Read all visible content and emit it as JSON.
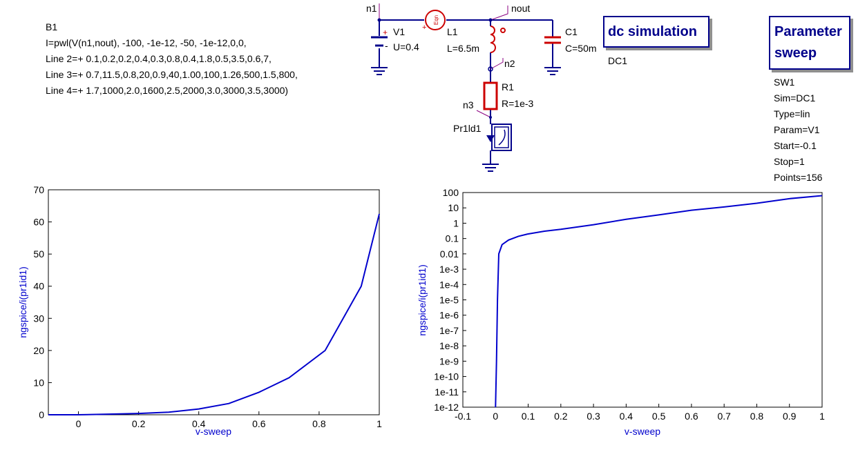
{
  "b1": {
    "name": "B1",
    "lines": [
      "I=pwl(V(n1,nout), -100, -1e-12, -50, -1e-12,0,0,",
      "Line 2=+ 0.1,0.2,0.2,0.4,0.3,0.8,0.4,1.8,0.5,3.5,0.6,7,",
      "Line 3=+ 0.7,11.5,0.8,20,0.9,40,1.00,100,1.26,500,1.5,800,",
      "Line 4=+ 1.7,1000,2.0,1600,2.5,2000,3.0,3000,3.5,3000)"
    ]
  },
  "schematic": {
    "n1": "n1",
    "nout": "nout",
    "n2": "n2",
    "n3": "n3",
    "v1_name": "V1",
    "v1_value": "U=0.4",
    "l1_name": "L1",
    "l1_value": "L=6.5m",
    "c1_name": "C1",
    "c1_value": "C=50m",
    "r1_name": "R1",
    "r1_value": "R=1e-3",
    "probe_name": "Pr1ld1",
    "src_label": "Eqn"
  },
  "dc_sim": {
    "title": "dc simulation",
    "name": "DC1"
  },
  "sweep": {
    "title_line1": "Parameter",
    "title_line2": "sweep",
    "props": [
      "SW1",
      "Sim=DC1",
      "Type=lin",
      "Param=V1",
      "Start=-0.1",
      "Stop=1",
      "Points=156"
    ]
  },
  "colors": {
    "curve": "#0000cd",
    "wire": "#00008b",
    "component": "#cc0000",
    "label": "#0000cd"
  },
  "chart_data": [
    {
      "type": "line",
      "xlabel": "v-sweep",
      "ylabel": "ngspice/i(pr1id1)",
      "xlim": [
        -0.1,
        1
      ],
      "ylim": [
        0,
        70
      ],
      "x_ticks": [
        0,
        0.2,
        0.4,
        0.6,
        0.8,
        1
      ],
      "y_ticks": [
        0,
        10,
        20,
        30,
        40,
        50,
        60,
        70
      ],
      "x_tick_labels": [
        "0",
        "0.2",
        "0.4",
        "0.6",
        "0.8",
        "1"
      ],
      "y_tick_labels": [
        "0",
        "10",
        "20",
        "30",
        "40",
        "50",
        "60",
        "70"
      ],
      "grid": false,
      "series": [
        {
          "x": [
            -0.1,
            0,
            0.1,
            0.2,
            0.3,
            0.4,
            0.5,
            0.6,
            0.7,
            0.82,
            0.94,
            1.0
          ],
          "y": [
            0,
            0,
            0.2,
            0.4,
            0.8,
            1.8,
            3.5,
            7,
            11.5,
            20,
            40,
            62.5
          ]
        }
      ]
    },
    {
      "type": "line",
      "xlabel": "v-sweep",
      "ylabel": "ngspice/i(pr1id1)",
      "xlim": [
        -0.1,
        1
      ],
      "ylim": [
        1e-12,
        100
      ],
      "yscale": "log",
      "x_ticks": [
        -0.1,
        0,
        0.1,
        0.2,
        0.3,
        0.4,
        0.5,
        0.6,
        0.7,
        0.8,
        0.9,
        1
      ],
      "y_ticks": [
        1e-12,
        1e-11,
        1e-10,
        1e-09,
        1e-08,
        1e-07,
        1e-06,
        1e-05,
        0.0001,
        0.001,
        0.01,
        0.1,
        1,
        10,
        100
      ],
      "x_tick_labels": [
        "-0.1",
        "0",
        "0.1",
        "0.2",
        "0.3",
        "0.4",
        "0.5",
        "0.6",
        "0.7",
        "0.8",
        "0.9",
        "1"
      ],
      "y_tick_labels": [
        "1e-12",
        "1e-11",
        "1e-10",
        "1e-9",
        "1e-8",
        "1e-7",
        "1e-6",
        "1e-5",
        "1e-4",
        "1e-3",
        "0.01",
        "0.1",
        "1",
        "10",
        "100"
      ],
      "grid": false,
      "series": [
        {
          "x": [
            0,
            0.003,
            0.006,
            0.01,
            0.02,
            0.04,
            0.07,
            0.1,
            0.15,
            0.2,
            0.3,
            0.4,
            0.5,
            0.6,
            0.7,
            0.8,
            0.9,
            1.0
          ],
          "y": [
            1e-12,
            1e-09,
            1e-05,
            0.01,
            0.04,
            0.08,
            0.14,
            0.2,
            0.3,
            0.4,
            0.8,
            1.8,
            3.5,
            7,
            11.5,
            20,
            40,
            62.5
          ]
        }
      ]
    }
  ]
}
